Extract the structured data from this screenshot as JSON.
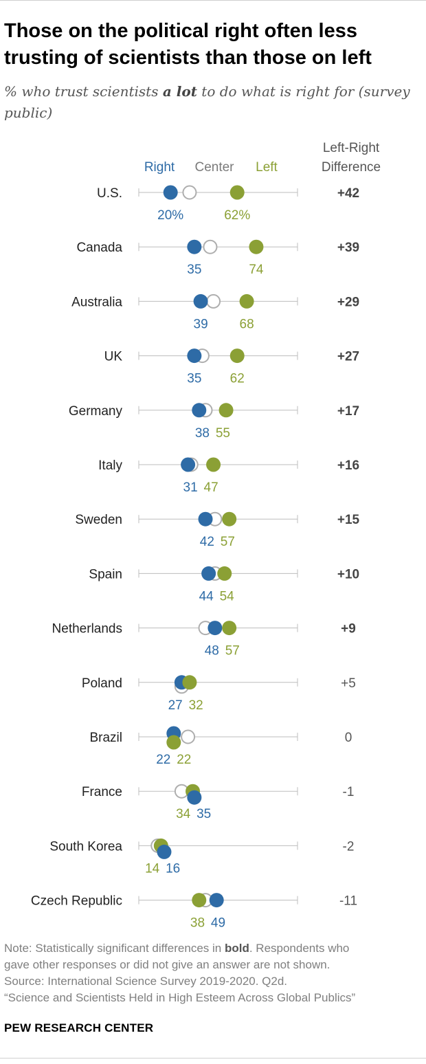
{
  "title": "Those on the political right often less trusting of scientists than those on left",
  "subtitle_pre": "% who trust scientists ",
  "subtitle_bold": "a lot",
  "subtitle_post": " to do what is right for (survey public)",
  "colors": {
    "right": "#2E6BA6",
    "center_stroke": "#AEAEAE",
    "left": "#8BA035",
    "axis": "#BDBDBD",
    "label_dark": "#444444",
    "label_light": "#555555"
  },
  "chart_data": {
    "type": "dot_plot",
    "title": "Those on the political right often less trusting of scientists than those on left",
    "legend": {
      "right": "Right",
      "center": "Center",
      "left": "Left"
    },
    "diff_header": [
      "Left-Right",
      "Difference"
    ],
    "xlim": [
      0,
      100
    ],
    "rows": [
      {
        "country": "U.S.",
        "right": 20,
        "center": 32,
        "left": 62,
        "right_label": "20%",
        "left_label": "62%",
        "diff": "+42",
        "significant": true
      },
      {
        "country": "Canada",
        "right": 35,
        "center": 45,
        "left": 74,
        "right_label": "35",
        "left_label": "74",
        "diff": "+39",
        "significant": true
      },
      {
        "country": "Australia",
        "right": 39,
        "center": 47,
        "left": 68,
        "right_label": "39",
        "left_label": "68",
        "diff": "+29",
        "significant": true
      },
      {
        "country": "UK",
        "right": 35,
        "center": 40,
        "left": 62,
        "right_label": "35",
        "left_label": "62",
        "diff": "+27",
        "significant": true
      },
      {
        "country": "Germany",
        "right": 38,
        "center": 42,
        "left": 55,
        "right_label": "38",
        "left_label": "55",
        "diff": "+17",
        "significant": true
      },
      {
        "country": "Italy",
        "right": 31,
        "center": 33,
        "left": 47,
        "right_label": "31",
        "left_label": "47",
        "diff": "+16",
        "significant": true
      },
      {
        "country": "Sweden",
        "right": 42,
        "center": 48,
        "left": 57,
        "right_label": "42",
        "left_label": "57",
        "diff": "+15",
        "significant": true
      },
      {
        "country": "Spain",
        "right": 44,
        "center": 48,
        "left": 54,
        "right_label": "44",
        "left_label": "54",
        "diff": "+10",
        "significant": true
      },
      {
        "country": "Netherlands",
        "right": 48,
        "center": 42,
        "left": 57,
        "right_label": "48",
        "left_label": "57",
        "diff": "+9",
        "significant": true
      },
      {
        "country": "Poland",
        "right": 27,
        "center": 27,
        "left": 32,
        "right_label": "27",
        "left_label": "32",
        "diff": "+5",
        "significant": false
      },
      {
        "country": "Brazil",
        "right": 22,
        "center": 31,
        "left": 22,
        "right_label": "22",
        "left_label": "22",
        "diff": "0",
        "significant": false
      },
      {
        "country": "France",
        "right": 35,
        "center": 27,
        "left": 34,
        "right_label": "35",
        "left_label": "34",
        "diff": "-1",
        "significant": false
      },
      {
        "country": "South Korea",
        "right": 16,
        "center": 12,
        "left": 14,
        "right_label": "16",
        "left_label": "14",
        "diff": "-2",
        "significant": false
      },
      {
        "country": "Czech Republic",
        "right": 49,
        "center": 42,
        "left": 38,
        "right_label": "49",
        "left_label": "38",
        "diff": "-11",
        "significant": false
      }
    ]
  },
  "notes": {
    "note_pre": "Note: Statistically significant differences in ",
    "note_bold": "bold",
    "note_post": ". Respondents who",
    "line2": "gave other responses or did not give an answer are not shown.",
    "source": "Source: International Science Survey 2019-2020. Q2d.",
    "report": "“Science and Scientists Held in High Esteem Across Global Publics”"
  },
  "org": "PEW RESEARCH CENTER"
}
